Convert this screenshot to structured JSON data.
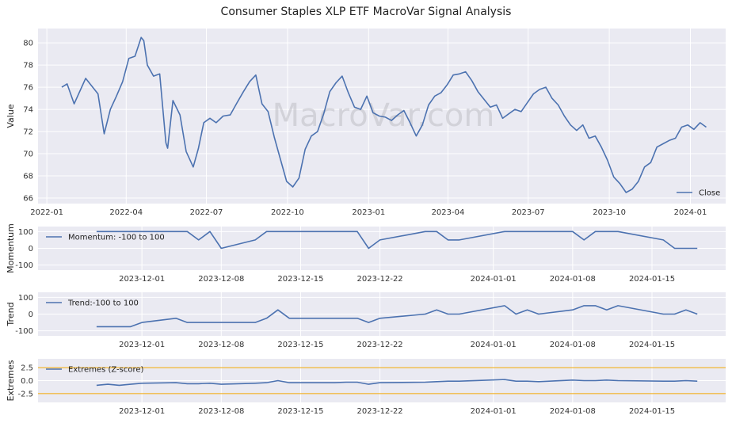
{
  "title": "Consumer Staples XLP ETF MacroVar Signal Analysis",
  "watermark": "MacroVar.com",
  "colors": {
    "line": "#4c72b0",
    "band": "#f0a500",
    "panel_bg": "#eaeaf2",
    "grid": "#ffffff"
  },
  "chart_data": [
    {
      "id": "close",
      "type": "line",
      "ylabel": "Value",
      "ylim": [
        65.5,
        81.3
      ],
      "yticks": [
        "66",
        "68",
        "70",
        "72",
        "74",
        "76",
        "78",
        "80"
      ],
      "xticks": [
        "2022-01",
        "2022-04",
        "2022-07",
        "2022-10",
        "2023-01",
        "2023-04",
        "2023-07",
        "2023-10",
        "2024-01"
      ],
      "legend": {
        "label": "Close",
        "position": "lower-right"
      },
      "series": [
        {
          "name": "Close",
          "x": [
            "2022-01-18",
            "2022-01-24",
            "2022-02-01",
            "2022-02-14",
            "2022-02-28",
            "2022-03-07",
            "2022-03-14",
            "2022-03-21",
            "2022-03-28",
            "2022-04-04",
            "2022-04-11",
            "2022-04-18",
            "2022-04-21",
            "2022-04-25",
            "2022-05-02",
            "2022-05-09",
            "2022-05-16",
            "2022-05-18",
            "2022-05-24",
            "2022-06-01",
            "2022-06-08",
            "2022-06-16",
            "2022-06-22",
            "2022-06-28",
            "2022-07-05",
            "2022-07-12",
            "2022-07-20",
            "2022-07-28",
            "2022-08-04",
            "2022-08-12",
            "2022-08-19",
            "2022-08-26",
            "2022-09-02",
            "2022-09-09",
            "2022-09-16",
            "2022-09-23",
            "2022-09-30",
            "2022-10-07",
            "2022-10-14",
            "2022-10-21",
            "2022-10-28",
            "2022-11-04",
            "2022-11-11",
            "2022-11-18",
            "2022-11-25",
            "2022-12-02",
            "2022-12-09",
            "2022-12-16",
            "2022-12-23",
            "2022-12-30",
            "2023-01-06",
            "2023-01-13",
            "2023-01-20",
            "2023-01-27",
            "2023-02-03",
            "2023-02-10",
            "2023-02-17",
            "2023-02-24",
            "2023-03-03",
            "2023-03-10",
            "2023-03-17",
            "2023-03-24",
            "2023-03-31",
            "2023-04-07",
            "2023-04-14",
            "2023-04-21",
            "2023-04-28",
            "2023-05-05",
            "2023-05-12",
            "2023-05-19",
            "2023-05-26",
            "2023-06-02",
            "2023-06-09",
            "2023-06-16",
            "2023-06-23",
            "2023-06-30",
            "2023-07-07",
            "2023-07-14",
            "2023-07-21",
            "2023-07-28",
            "2023-08-04",
            "2023-08-11",
            "2023-08-18",
            "2023-08-25",
            "2023-09-01",
            "2023-09-08",
            "2023-09-15",
            "2023-09-22",
            "2023-09-29",
            "2023-10-06",
            "2023-10-13",
            "2023-10-20",
            "2023-10-27",
            "2023-11-03",
            "2023-11-10",
            "2023-11-17",
            "2023-11-24",
            "2023-12-01",
            "2023-12-08",
            "2023-12-15",
            "2023-12-22",
            "2023-12-29",
            "2024-01-05",
            "2024-01-12",
            "2024-01-19"
          ],
          "y": [
            76.0,
            76.3,
            74.5,
            76.8,
            75.4,
            71.8,
            74.0,
            75.2,
            76.5,
            78.6,
            78.8,
            80.5,
            80.2,
            78.0,
            77.0,
            77.2,
            71.0,
            70.5,
            74.8,
            73.5,
            70.2,
            68.8,
            70.5,
            72.8,
            73.2,
            72.8,
            73.4,
            73.5,
            74.5,
            75.6,
            76.5,
            77.1,
            74.5,
            73.8,
            71.5,
            69.5,
            67.5,
            67.0,
            67.8,
            70.4,
            71.6,
            72.0,
            73.6,
            75.6,
            76.4,
            77.0,
            75.5,
            74.2,
            74.0,
            75.2,
            73.7,
            73.4,
            73.3,
            73.0,
            73.5,
            73.9,
            72.8,
            71.6,
            72.6,
            74.4,
            75.2,
            75.5,
            76.2,
            77.1,
            77.2,
            77.4,
            76.6,
            75.6,
            74.9,
            74.2,
            74.4,
            73.2,
            73.6,
            74.0,
            73.8,
            74.6,
            75.4,
            75.8,
            76.0,
            75.0,
            74.4,
            73.4,
            72.6,
            72.1,
            72.6,
            71.4,
            71.6,
            70.6,
            69.4,
            67.9,
            67.3,
            66.5,
            66.8,
            67.5,
            68.8,
            69.2,
            70.6,
            70.9,
            71.2,
            71.4,
            72.4,
            72.6,
            72.2,
            72.8,
            72.4
          ]
        }
      ]
    },
    {
      "id": "momentum",
      "type": "line",
      "ylabel": "Momentum",
      "ylim": [
        -130,
        130
      ],
      "yticks": [
        "-100",
        "0",
        "100"
      ],
      "xticks": [
        "2023-12-01",
        "2023-12-08",
        "2023-12-15",
        "2023-12-22",
        "2024-01-01",
        "2024-01-08",
        "2024-01-15"
      ],
      "legend": {
        "label": "Momentum: -100 to 100",
        "position": "upper-left"
      },
      "series": [
        {
          "name": "Momentum: -100 to 100",
          "x": [
            "2023-11-27",
            "2023-11-28",
            "2023-11-29",
            "2023-11-30",
            "2023-12-01",
            "2023-12-04",
            "2023-12-05",
            "2023-12-06",
            "2023-12-07",
            "2023-12-08",
            "2023-12-11",
            "2023-12-12",
            "2023-12-13",
            "2023-12-14",
            "2023-12-15",
            "2023-12-18",
            "2023-12-19",
            "2023-12-20",
            "2023-12-21",
            "2023-12-22",
            "2023-12-26",
            "2023-12-27",
            "2023-12-28",
            "2023-12-29",
            "2024-01-02",
            "2024-01-03",
            "2024-01-04",
            "2024-01-05",
            "2024-01-08",
            "2024-01-09",
            "2024-01-10",
            "2024-01-11",
            "2024-01-12",
            "2024-01-16",
            "2024-01-17",
            "2024-01-18",
            "2024-01-19"
          ],
          "y": [
            100,
            100,
            100,
            100,
            100,
            100,
            100,
            50,
            100,
            0,
            50,
            100,
            100,
            100,
            100,
            100,
            100,
            100,
            0,
            50,
            100,
            100,
            50,
            50,
            100,
            100,
            100,
            100,
            100,
            50,
            100,
            100,
            100,
            50,
            0,
            0,
            0
          ]
        }
      ]
    },
    {
      "id": "trend",
      "type": "line",
      "ylabel": "Trend",
      "ylim": [
        -130,
        130
      ],
      "yticks": [
        "-100",
        "0",
        "100"
      ],
      "xticks": [
        "2023-12-01",
        "2023-12-08",
        "2023-12-15",
        "2023-12-22",
        "2024-01-01",
        "2024-01-08",
        "2024-01-15"
      ],
      "legend": {
        "label": "Trend:-100 to 100",
        "position": "upper-left"
      },
      "series": [
        {
          "name": "Trend:-100 to 100",
          "x": [
            "2023-11-27",
            "2023-11-28",
            "2023-11-29",
            "2023-11-30",
            "2023-12-01",
            "2023-12-04",
            "2023-12-05",
            "2023-12-06",
            "2023-12-07",
            "2023-12-08",
            "2023-12-11",
            "2023-12-12",
            "2023-12-13",
            "2023-12-14",
            "2023-12-15",
            "2023-12-18",
            "2023-12-19",
            "2023-12-20",
            "2023-12-21",
            "2023-12-22",
            "2023-12-26",
            "2023-12-27",
            "2023-12-28",
            "2023-12-29",
            "2024-01-02",
            "2024-01-03",
            "2024-01-04",
            "2024-01-05",
            "2024-01-08",
            "2024-01-09",
            "2024-01-10",
            "2024-01-11",
            "2024-01-12",
            "2024-01-16",
            "2024-01-17",
            "2024-01-18",
            "2024-01-19"
          ],
          "y": [
            -75,
            -75,
            -75,
            -75,
            -50,
            -25,
            -50,
            -50,
            -50,
            -50,
            -50,
            -25,
            25,
            -25,
            -25,
            -25,
            -25,
            -25,
            -50,
            -25,
            0,
            25,
            0,
            0,
            50,
            0,
            25,
            0,
            25,
            50,
            50,
            25,
            50,
            0,
            0,
            25,
            0
          ]
        }
      ]
    },
    {
      "id": "extremes",
      "type": "line",
      "ylabel": "Extremes",
      "ylim": [
        -4.2,
        4.2
      ],
      "yticks": [
        "-2.5",
        "0.0",
        "2.5"
      ],
      "xticks": [
        "2023-12-01",
        "2023-12-08",
        "2023-12-15",
        "2023-12-22",
        "2024-01-01",
        "2024-01-08",
        "2024-01-15"
      ],
      "hlines": [
        2.5,
        -2.5
      ],
      "legend": {
        "label": "Extremes (Z-score)",
        "position": "upper-left"
      },
      "series": [
        {
          "name": "Extremes (Z-score)",
          "x": [
            "2023-11-27",
            "2023-11-28",
            "2023-11-29",
            "2023-11-30",
            "2023-12-01",
            "2023-12-04",
            "2023-12-05",
            "2023-12-06",
            "2023-12-07",
            "2023-12-08",
            "2023-12-11",
            "2023-12-12",
            "2023-12-13",
            "2023-12-14",
            "2023-12-15",
            "2023-12-18",
            "2023-12-19",
            "2023-12-20",
            "2023-12-21",
            "2023-12-22",
            "2023-12-26",
            "2023-12-27",
            "2023-12-28",
            "2023-12-29",
            "2024-01-02",
            "2024-01-03",
            "2024-01-04",
            "2024-01-05",
            "2024-01-08",
            "2024-01-09",
            "2024-01-10",
            "2024-01-11",
            "2024-01-12",
            "2024-01-16",
            "2024-01-17",
            "2024-01-18",
            "2024-01-19"
          ],
          "y": [
            -0.9,
            -0.7,
            -0.9,
            -0.7,
            -0.5,
            -0.4,
            -0.6,
            -0.6,
            -0.5,
            -0.7,
            -0.5,
            -0.4,
            0.0,
            -0.4,
            -0.4,
            -0.4,
            -0.3,
            -0.3,
            -0.7,
            -0.4,
            -0.3,
            -0.2,
            -0.1,
            -0.1,
            0.2,
            -0.1,
            -0.1,
            -0.2,
            0.1,
            0.0,
            0.0,
            0.1,
            0.0,
            -0.1,
            -0.1,
            0.0,
            -0.1
          ]
        }
      ]
    }
  ]
}
